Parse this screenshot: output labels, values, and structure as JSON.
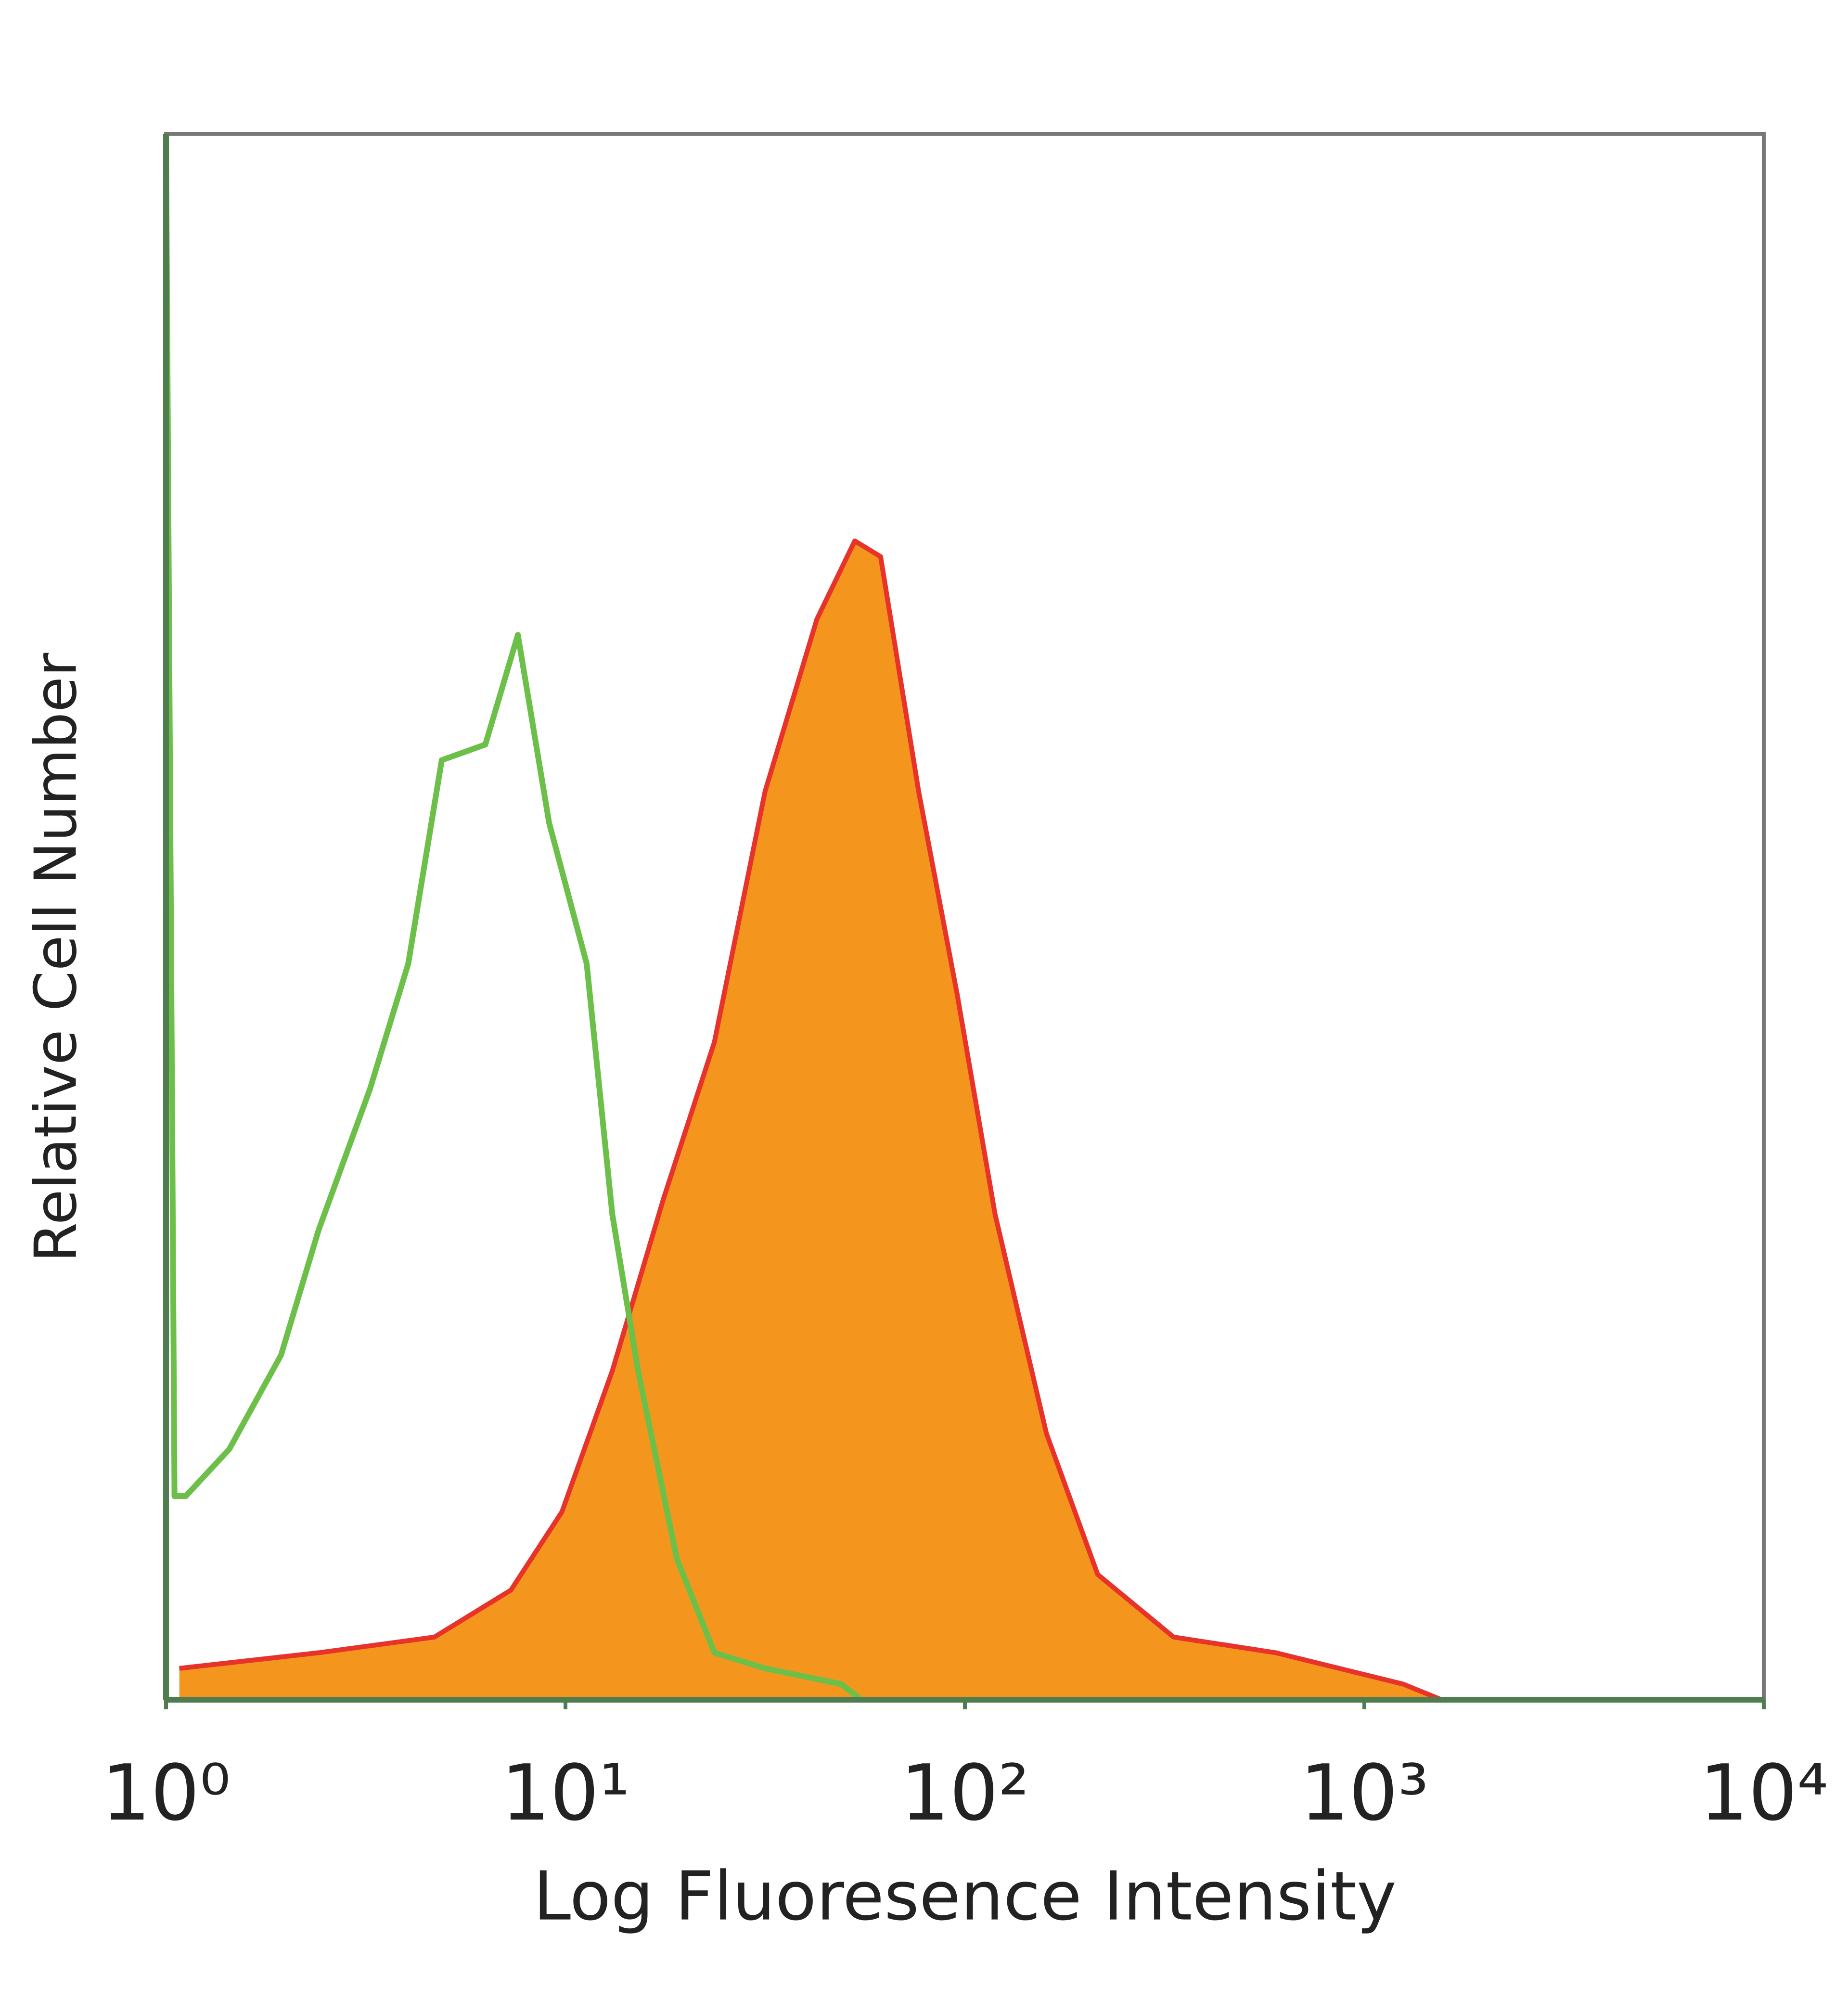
{
  "chart_data": {
    "type": "line",
    "xlabel": "Log Fluoresence Intensity",
    "ylabel": "Relative Cell Number",
    "xscale": "log",
    "xlim": [
      1,
      10000
    ],
    "xticks": [
      {
        "value": 1,
        "label": "10⁰"
      },
      {
        "value": 10,
        "label": "10¹"
      },
      {
        "value": 100,
        "label": "10²"
      },
      {
        "value": 1000,
        "label": "10³"
      },
      {
        "value": 10000,
        "label": "10⁴"
      }
    ],
    "ylim": [
      0,
      100
    ],
    "frame_color": "#4f7d4f",
    "series": [
      {
        "color": "#f4961e",
        "stroke": "#e8332a",
        "x": [
          1.08,
          2.41,
          4.7,
          7.3,
          9.8,
          13.1,
          17.6,
          23.6,
          31.6,
          42.6,
          53,
          61.5,
          76.6,
          95.7,
          119,
          160,
          215,
          333,
          600,
          1250,
          1560
        ],
        "values": [
          2,
          3,
          4,
          7,
          12,
          21,
          32,
          42,
          58,
          69,
          74,
          73,
          58,
          45,
          31,
          17,
          8,
          4,
          3,
          1,
          0
        ]
      },
      {
        "color": "#6cc04a",
        "x": [
          1,
          1.05,
          1.12,
          1.44,
          1.94,
          2.41,
          3.24,
          4.04,
          4.9,
          6.3,
          7.6,
          9.1,
          11.3,
          13.1,
          15.2,
          19,
          23.6,
          31.6,
          49,
          55
        ],
        "values": [
          100,
          13,
          13,
          16,
          22,
          30,
          39,
          47,
          60,
          61,
          68,
          56,
          47,
          31,
          21,
          9,
          3,
          2,
          1,
          0
        ]
      }
    ]
  }
}
